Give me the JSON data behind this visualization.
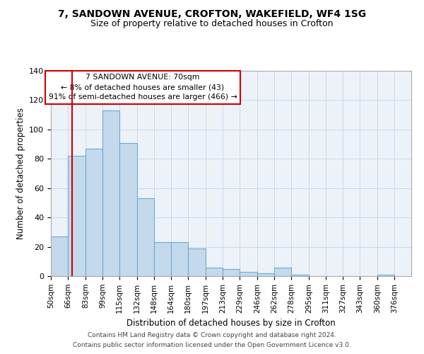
{
  "title1": "7, SANDOWN AVENUE, CROFTON, WAKEFIELD, WF4 1SG",
  "title2": "Size of property relative to detached houses in Crofton",
  "xlabel": "Distribution of detached houses by size in Crofton",
  "ylabel": "Number of detached properties",
  "bin_labels": [
    "50sqm",
    "66sqm",
    "83sqm",
    "99sqm",
    "115sqm",
    "132sqm",
    "148sqm",
    "164sqm",
    "180sqm",
    "197sqm",
    "213sqm",
    "229sqm",
    "246sqm",
    "262sqm",
    "278sqm",
    "295sqm",
    "311sqm",
    "327sqm",
    "343sqm",
    "360sqm",
    "376sqm"
  ],
  "bin_edges": [
    50,
    66,
    83,
    99,
    115,
    132,
    148,
    164,
    180,
    197,
    213,
    229,
    246,
    262,
    278,
    295,
    311,
    327,
    343,
    360,
    376
  ],
  "bar_heights": [
    27,
    82,
    87,
    113,
    91,
    53,
    23,
    23,
    19,
    6,
    5,
    3,
    2,
    6,
    1,
    0,
    0,
    0,
    0,
    1
  ],
  "bar_color": "#c5d9ec",
  "bar_edge_color": "#6aaad4",
  "grid_color": "#c8d8eb",
  "background_color": "#edf2f9",
  "red_line_x": 70,
  "annotation_box_text": "7 SANDOWN AVENUE: 70sqm\n← 8% of detached houses are smaller (43)\n91% of semi-detached houses are larger (466) →",
  "annotation_box_color": "#cc0000",
  "ylim": [
    0,
    140
  ],
  "yticks": [
    0,
    20,
    40,
    60,
    80,
    100,
    120,
    140
  ],
  "footnote1": "Contains HM Land Registry data © Crown copyright and database right 2024.",
  "footnote2": "Contains public sector information licensed under the Open Government Licence v3.0."
}
